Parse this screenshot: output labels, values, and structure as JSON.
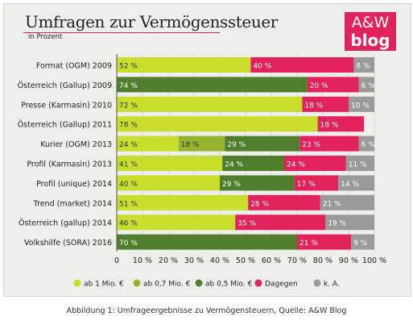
{
  "figure": {
    "caption": "Abbildung 1: Umfrageergebnisse zu Vermögensteuern, Quelle: A&W Blog",
    "logo_line1": "A&W",
    "logo_line2": "blog"
  },
  "chart_data": {
    "type": "bar",
    "orientation": "horizontal",
    "stacked": true,
    "title": "Umfragen zur Vermögenssteuer",
    "subtitle": "in Prozent",
    "categories": [
      "Format (OGM) 2009",
      "Österreich (Gallup) 2009",
      "Presse (Karmasin) 2010",
      "Österreich (Gallup) 2011",
      "Kurier (OGM) 2013",
      "Profil (Karmasin) 2013",
      "Profil (unique) 2014",
      "Trend (market) 2014",
      "Österreich (gallup) 2014",
      "Volkshilfe (SORA) 2016"
    ],
    "series": [
      {
        "name": "ab 1 Mio. €",
        "color": "#c8dd2c",
        "values": [
          52,
          0,
          72,
          78,
          24,
          41,
          40,
          51,
          46,
          0
        ]
      },
      {
        "name": "ab 0,7 Mio. €",
        "color": "#93b52e",
        "values": [
          0,
          0,
          0,
          0,
          18,
          0,
          0,
          0,
          0,
          0
        ]
      },
      {
        "name": "ab 0,5 Mio. €",
        "color": "#4f7f2c",
        "values": [
          0,
          74,
          0,
          0,
          29,
          24,
          29,
          0,
          0,
          70
        ]
      },
      {
        "name": "Dagegen",
        "color": "#e2225a",
        "values": [
          40,
          20,
          18,
          18,
          23,
          24,
          17,
          28,
          35,
          21
        ]
      },
      {
        "name": "k. A.",
        "color": "#9a9a9a",
        "values": [
          8,
          6,
          10,
          0,
          6,
          11,
          14,
          21,
          19,
          9
        ]
      }
    ],
    "value_suffix": " %",
    "xlim": [
      0,
      100
    ],
    "xticks": [
      0,
      10,
      20,
      30,
      40,
      50,
      60,
      70,
      80,
      90,
      100
    ],
    "xtick_labels": [
      "0",
      "10 %",
      "20 %",
      "30 %",
      "40 %",
      "50 %",
      "60 %",
      "70 %",
      "80 %",
      "90 %",
      "100 %"
    ],
    "grid": true,
    "legend_position": "bottom"
  }
}
